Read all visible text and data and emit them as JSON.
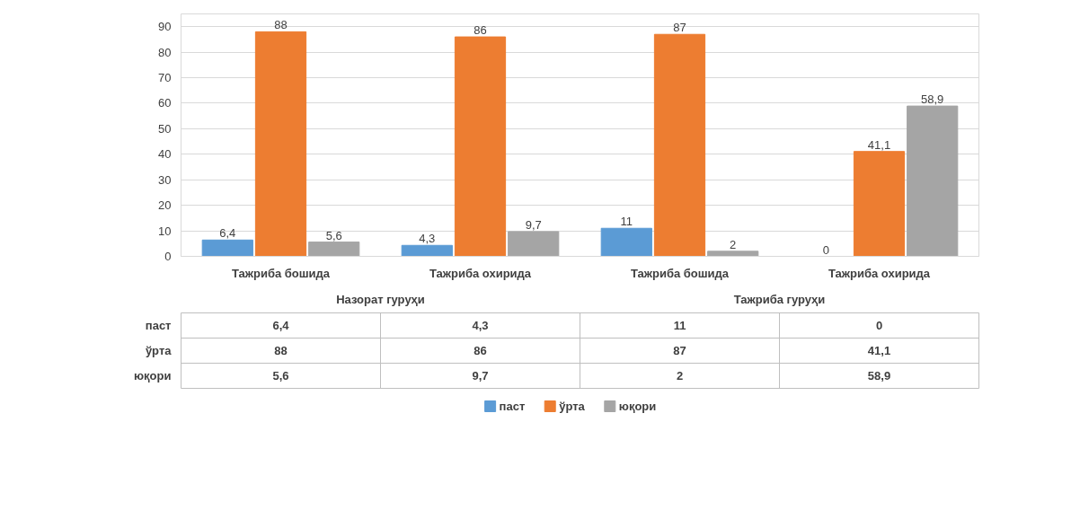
{
  "chart_data": {
    "type": "bar",
    "categories": [
      "Тажриба бошида",
      "Тажриба охирида",
      "Тажриба бошида",
      "Тажриба охирида"
    ],
    "annotations": [
      "Назорат гуруҳи",
      "Тажриба гуруҳи"
    ],
    "series": [
      {
        "name": "паст",
        "color": "#5b9bd5",
        "values": [
          6.4,
          4.3,
          11,
          0
        ],
        "value_labels": [
          "6,4",
          "4,3",
          "11",
          "0"
        ]
      },
      {
        "name": "ўрта",
        "color": "#ed7d31",
        "values": [
          88,
          86,
          87,
          41.1
        ],
        "value_labels": [
          "88",
          "86",
          "87",
          "41,1"
        ]
      },
      {
        "name": "юқори",
        "color": "#a5a5a5",
        "values": [
          5.6,
          9.7,
          2,
          58.9
        ],
        "value_labels": [
          "5,6",
          "9,7",
          "2",
          "58,9"
        ]
      }
    ],
    "ylim": [
      0,
      95
    ],
    "yticks": [
      0,
      10,
      20,
      30,
      40,
      50,
      60,
      70,
      80,
      90
    ],
    "grid": "y",
    "legend": "bottom"
  }
}
